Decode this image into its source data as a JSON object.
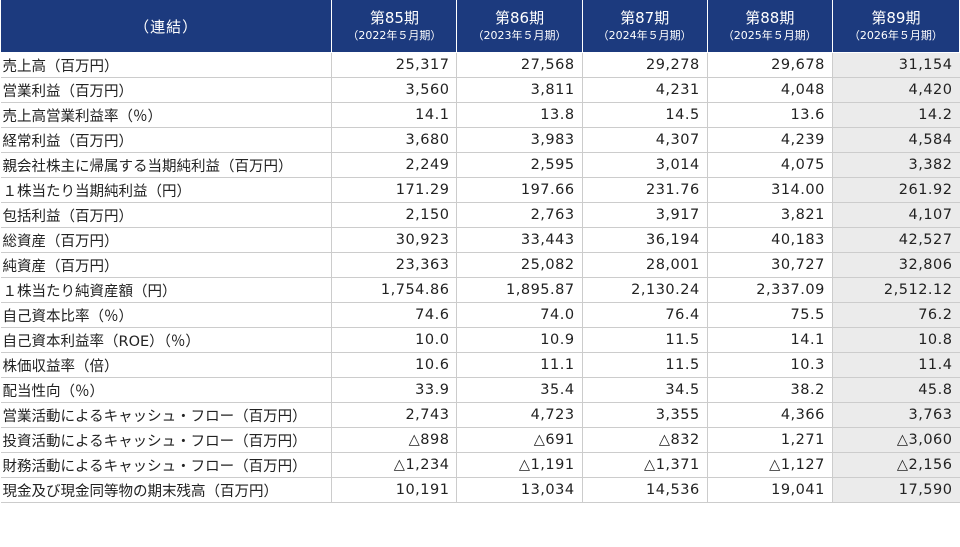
{
  "header": {
    "label": "（連結）",
    "periods": [
      {
        "period": "第85期",
        "date": "（2022年５月期）"
      },
      {
        "period": "第86期",
        "date": "（2023年５月期）"
      },
      {
        "period": "第87期",
        "date": "（2024年５月期）"
      },
      {
        "period": "第88期",
        "date": "（2025年５月期）"
      },
      {
        "period": "第89期",
        "date": "（2026年５月期）"
      }
    ]
  },
  "highlight_color": "#ebebeb",
  "header_color": "#1c3a7e",
  "rows": [
    {
      "label": "売上高（百万円）",
      "values": [
        "25,317",
        "27,568",
        "29,278",
        "29,678",
        "31,154"
      ]
    },
    {
      "label": "営業利益（百万円）",
      "values": [
        "3,560",
        "3,811",
        "4,231",
        "4,048",
        "4,420"
      ]
    },
    {
      "label": "売上高営業利益率（％）",
      "values": [
        "14.1",
        "13.8",
        "14.5",
        "13.6",
        "14.2"
      ]
    },
    {
      "label": "経常利益（百万円）",
      "values": [
        "3,680",
        "3,983",
        "4,307",
        "4,239",
        "4,584"
      ]
    },
    {
      "label": "親会社株主に帰属する当期純利益（百万円）",
      "values": [
        "2,249",
        "2,595",
        "3,014",
        "4,075",
        "3,382"
      ]
    },
    {
      "label": "１株当たり当期純利益（円）",
      "values": [
        "171.29",
        "197.66",
        "231.76",
        "314.00",
        "261.92"
      ]
    },
    {
      "label": "包括利益（百万円）",
      "values": [
        "2,150",
        "2,763",
        "3,917",
        "3,821",
        "4,107"
      ]
    },
    {
      "label": "総資産（百万円）",
      "values": [
        "30,923",
        "33,443",
        "36,194",
        "40,183",
        "42,527"
      ]
    },
    {
      "label": "純資産（百万円）",
      "values": [
        "23,363",
        "25,082",
        "28,001",
        "30,727",
        "32,806"
      ]
    },
    {
      "label": "１株当たり純資産額（円）",
      "values": [
        "1,754.86",
        "1,895.87",
        "2,130.24",
        "2,337.09",
        "2,512.12"
      ]
    },
    {
      "label": "自己資本比率（％）",
      "values": [
        "74.6",
        "74.0",
        "76.4",
        "75.5",
        "76.2"
      ]
    },
    {
      "label": "自己資本利益率（ROE）（％）",
      "values": [
        "10.0",
        "10.9",
        "11.5",
        "14.1",
        "10.8"
      ]
    },
    {
      "label": "株価収益率（倍）",
      "values": [
        "10.6",
        "11.1",
        "11.5",
        "10.3",
        "11.4"
      ]
    },
    {
      "label": "配当性向（％）",
      "values": [
        "33.9",
        "35.4",
        "34.5",
        "38.2",
        "45.8"
      ]
    },
    {
      "label": "営業活動によるキャッシュ・フロー（百万円）",
      "values": [
        "2,743",
        "4,723",
        "3,355",
        "4,366",
        "3,763"
      ]
    },
    {
      "label": "投資活動によるキャッシュ・フロー（百万円）",
      "values": [
        "△898",
        "△691",
        "△832",
        "1,271",
        "△3,060"
      ]
    },
    {
      "label": "財務活動によるキャッシュ・フロー（百万円）",
      "values": [
        "△1,234",
        "△1,191",
        "△1,371",
        "△1,127",
        "△2,156"
      ]
    },
    {
      "label": "現金及び現金同等物の期末残高（百万円）",
      "values": [
        "10,191",
        "13,034",
        "14,536",
        "19,041",
        "17,590"
      ]
    }
  ]
}
